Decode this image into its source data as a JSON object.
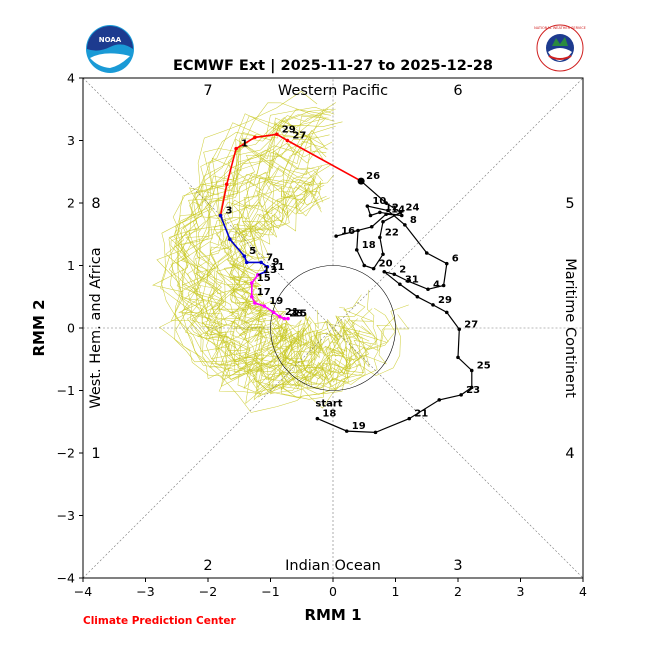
{
  "chart_data": {
    "type": "line",
    "title": "ECMWF Ext | 2025-11-27 to 2025-12-28",
    "xlabel": "RMM 1",
    "ylabel": "RMM 2",
    "xlim": [
      -4,
      4
    ],
    "ylim": [
      -4,
      4
    ],
    "xticks": [
      "−4",
      "−3",
      "−2",
      "−1",
      "0",
      "1",
      "2",
      "3",
      "4"
    ],
    "yticks": [
      "−4",
      "−3",
      "−2",
      "−1",
      "0",
      "1",
      "2",
      "3",
      "4"
    ],
    "grid": false,
    "regions": {
      "top": "Western Pacific",
      "bottom": "Indian Ocean",
      "left": "West. Hem. and Africa",
      "right": "Maritime Continent"
    },
    "phase_labels": [
      "1",
      "2",
      "3",
      "4",
      "5",
      "6",
      "7",
      "8"
    ],
    "unit_circle_radius": 1,
    "start_label": "start",
    "colors": {
      "observed": "#000000",
      "forecast_segment_1": "#0000cc",
      "forecast_segment_2": "#ff00ff",
      "forecast_segment_3": "#ff0000",
      "ensemble": "#c8c820"
    },
    "series": [
      {
        "role": "observed",
        "color": "#000000",
        "points": [
          {
            "x": -0.25,
            "y": -1.45,
            "label": "18"
          },
          {
            "x": 0.22,
            "y": -1.65,
            "label": "19"
          },
          {
            "x": 0.68,
            "y": -1.67,
            "label": ""
          },
          {
            "x": 1.22,
            "y": -1.45,
            "label": "21"
          },
          {
            "x": 1.7,
            "y": -1.15,
            "label": ""
          },
          {
            "x": 2.05,
            "y": -1.07,
            "label": "23"
          },
          {
            "x": 2.22,
            "y": -0.95,
            "label": ""
          },
          {
            "x": 2.22,
            "y": -0.68,
            "label": "25"
          },
          {
            "x": 2.0,
            "y": -0.47,
            "label": ""
          },
          {
            "x": 2.02,
            "y": -0.02,
            "label": "27"
          },
          {
            "x": 1.82,
            "y": 0.25,
            "label": ""
          },
          {
            "x": 1.6,
            "y": 0.37,
            "label": "29"
          },
          {
            "x": 1.35,
            "y": 0.5,
            "label": ""
          },
          {
            "x": 1.07,
            "y": 0.7,
            "label": "31"
          },
          {
            "x": 0.82,
            "y": 0.9,
            "label": ""
          },
          {
            "x": 0.98,
            "y": 0.86,
            "label": "2"
          },
          {
            "x": 1.2,
            "y": 0.75,
            "label": ""
          },
          {
            "x": 1.52,
            "y": 0.62,
            "label": "4"
          },
          {
            "x": 1.77,
            "y": 0.68,
            "label": ""
          },
          {
            "x": 1.82,
            "y": 1.03,
            "label": "6"
          },
          {
            "x": 1.5,
            "y": 1.2,
            "label": ""
          },
          {
            "x": 1.15,
            "y": 1.65,
            "label": "8"
          },
          {
            "x": 0.88,
            "y": 1.88,
            "label": ""
          },
          {
            "x": 0.55,
            "y": 1.95,
            "label": "10"
          },
          {
            "x": 0.6,
            "y": 1.8,
            "label": ""
          },
          {
            "x": 0.75,
            "y": 1.85,
            "label": "12"
          },
          {
            "x": 1.1,
            "y": 1.8,
            "label": ""
          },
          {
            "x": 0.85,
            "y": 1.82,
            "label": "14"
          },
          {
            "x": 0.62,
            "y": 1.62,
            "label": ""
          },
          {
            "x": 0.05,
            "y": 1.47,
            "label": "16"
          },
          {
            "x": 0.4,
            "y": 1.56,
            "label": ""
          },
          {
            "x": 0.38,
            "y": 1.25,
            "label": "18"
          },
          {
            "x": 0.5,
            "y": 1.0,
            "label": ""
          },
          {
            "x": 0.65,
            "y": 0.95,
            "label": "20"
          },
          {
            "x": 0.8,
            "y": 1.18,
            "label": ""
          },
          {
            "x": 0.75,
            "y": 1.45,
            "label": "22"
          },
          {
            "x": 0.8,
            "y": 1.7,
            "label": ""
          },
          {
            "x": 1.08,
            "y": 1.85,
            "label": "24"
          },
          {
            "x": 0.85,
            "y": 2.0,
            "label": ""
          },
          {
            "x": 0.45,
            "y": 2.35,
            "label": "26"
          }
        ]
      },
      {
        "role": "forecast_segment_3",
        "color": "#ff0000",
        "points": [
          {
            "x": 0.45,
            "y": 2.35,
            "label": ""
          },
          {
            "x": -0.73,
            "y": 3.0,
            "label": "27"
          },
          {
            "x": -0.9,
            "y": 3.1,
            "label": "29"
          },
          {
            "x": -1.25,
            "y": 3.05,
            "label": ""
          },
          {
            "x": -1.55,
            "y": 2.87,
            "label": "1"
          },
          {
            "x": -1.7,
            "y": 2.3,
            "label": ""
          },
          {
            "x": -1.8,
            "y": 1.8,
            "label": "3"
          }
        ]
      },
      {
        "role": "forecast_segment_1",
        "color": "#0000cc",
        "points": [
          {
            "x": -1.8,
            "y": 1.8,
            "label": ""
          },
          {
            "x": -1.65,
            "y": 1.42,
            "label": ""
          },
          {
            "x": -1.42,
            "y": 1.15,
            "label": "5"
          },
          {
            "x": -1.38,
            "y": 1.05,
            "label": ""
          },
          {
            "x": -1.15,
            "y": 1.05,
            "label": "7"
          },
          {
            "x": -1.05,
            "y": 0.98,
            "label": "9"
          },
          {
            "x": -1.08,
            "y": 0.9,
            "label": "11"
          },
          {
            "x": -1.2,
            "y": 0.85,
            "label": "13"
          }
        ]
      },
      {
        "role": "forecast_segment_2",
        "color": "#ff00ff",
        "points": [
          {
            "x": -1.2,
            "y": 0.85,
            "label": ""
          },
          {
            "x": -1.3,
            "y": 0.72,
            "label": "15"
          },
          {
            "x": -1.3,
            "y": 0.5,
            "label": "17"
          },
          {
            "x": -1.25,
            "y": 0.4,
            "label": ""
          },
          {
            "x": -1.1,
            "y": 0.35,
            "label": "19"
          },
          {
            "x": -0.95,
            "y": 0.25,
            "label": ""
          },
          {
            "x": -0.85,
            "y": 0.18,
            "label": "21"
          },
          {
            "x": -0.78,
            "y": 0.15,
            "label": "23"
          },
          {
            "x": -0.72,
            "y": 0.15,
            "label": "25"
          }
        ]
      }
    ]
  },
  "footer": {
    "credit": "Climate Prediction Center"
  },
  "logos": {
    "left_text": "NOAA",
    "right_text": "NATIONAL WEATHER SERVICE"
  }
}
